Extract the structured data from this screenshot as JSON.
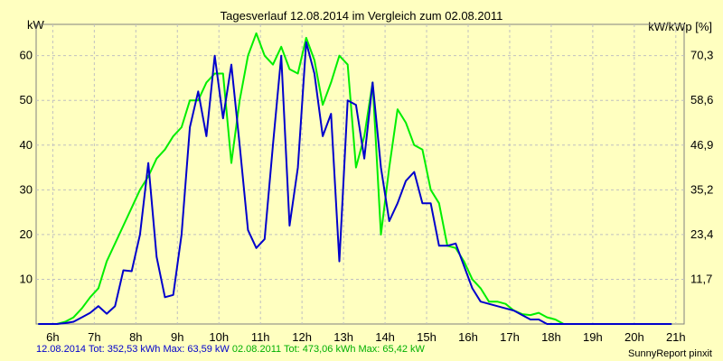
{
  "chart_data": {
    "type": "line",
    "title": "Tagesverlauf 12.08.2014 im Vergleich zum 02.08.2011",
    "ylabel_left": "kW",
    "ylabel_right": "kW/kWp [%]",
    "x_ticks": [
      "6h",
      "7h",
      "8h",
      "9h",
      "10h",
      "11h",
      "12h",
      "13h",
      "14h",
      "15h",
      "16h",
      "17h",
      "18h",
      "19h",
      "20h",
      "21h"
    ],
    "xlim": [
      5.6,
      21.2
    ],
    "ylim": [
      0,
      67
    ],
    "y_ticks_left": [
      10,
      20,
      30,
      40,
      50,
      60
    ],
    "y_ticks_right": [
      "11,7",
      "23,4",
      "35,2",
      "46,9",
      "58,6",
      "70,3"
    ],
    "grid": true,
    "series": [
      {
        "name": "12.08.2014",
        "color": "#0000cc",
        "x": [
          5.65,
          5.9,
          6.1,
          6.3,
          6.5,
          6.7,
          6.9,
          7.1,
          7.3,
          7.5,
          7.7,
          7.9,
          8.1,
          8.3,
          8.5,
          8.7,
          8.9,
          9.1,
          9.3,
          9.5,
          9.7,
          9.9,
          10.1,
          10.3,
          10.5,
          10.7,
          10.9,
          11.1,
          11.3,
          11.5,
          11.7,
          11.9,
          12.1,
          12.3,
          12.5,
          12.7,
          12.9,
          13.1,
          13.3,
          13.5,
          13.7,
          13.9,
          14.1,
          14.3,
          14.5,
          14.7,
          14.9,
          15.1,
          15.3,
          15.5,
          15.7,
          15.9,
          16.1,
          16.3,
          16.5,
          16.7,
          16.9,
          17.1,
          17.3,
          17.5,
          17.7,
          17.9,
          18.1,
          18.3,
          18.5,
          18.7,
          18.9,
          19.1,
          19.3,
          19.5,
          19.7,
          19.9,
          20.1,
          20.3,
          20.5,
          20.7,
          20.9
        ],
        "values": [
          0,
          0,
          0,
          0.2,
          0.5,
          1.5,
          2.5,
          4,
          2.3,
          4,
          12,
          11.8,
          20,
          36,
          15,
          6,
          6.5,
          20,
          44,
          52,
          42,
          60,
          46,
          58,
          40,
          21,
          17,
          19,
          40,
          60,
          22,
          35,
          63,
          56,
          42,
          47,
          14,
          50,
          49,
          37,
          54,
          35,
          23,
          27,
          32,
          34,
          27,
          27,
          17.5,
          17.5,
          18,
          13,
          8,
          5,
          4.5,
          4,
          3.5,
          3,
          2,
          1,
          1,
          0,
          0,
          0,
          0,
          0,
          0,
          0,
          0,
          0,
          0,
          0,
          0,
          0,
          0,
          0,
          0
        ]
      },
      {
        "name": "02.08.2011",
        "color": "#00ee00",
        "x": [
          5.65,
          5.9,
          6.1,
          6.3,
          6.5,
          6.7,
          6.9,
          7.1,
          7.3,
          7.5,
          7.7,
          7.9,
          8.1,
          8.3,
          8.5,
          8.7,
          8.9,
          9.1,
          9.3,
          9.5,
          9.7,
          9.9,
          10.1,
          10.3,
          10.5,
          10.7,
          10.9,
          11.1,
          11.3,
          11.5,
          11.7,
          11.9,
          12.1,
          12.3,
          12.5,
          12.7,
          12.9,
          13.1,
          13.3,
          13.5,
          13.7,
          13.9,
          14.1,
          14.3,
          14.5,
          14.7,
          14.9,
          15.1,
          15.3,
          15.5,
          15.7,
          15.9,
          16.1,
          16.3,
          16.5,
          16.7,
          16.9,
          17.1,
          17.3,
          17.5,
          17.7,
          17.9,
          18.1,
          18.3,
          18.5,
          18.7,
          18.9,
          19.1,
          19.3,
          19.5,
          19.7,
          19.9,
          20.1,
          20.3,
          20.5,
          20.7,
          20.9
        ],
        "values": [
          0,
          0,
          0,
          0.5,
          1.5,
          3.5,
          6,
          8,
          14,
          18,
          22,
          26,
          30,
          33,
          37,
          39,
          42,
          44,
          50,
          50,
          54,
          56,
          56,
          36,
          50,
          60,
          65,
          60,
          58,
          62,
          57,
          56,
          64,
          59,
          49,
          54,
          60,
          58,
          35,
          42,
          54,
          20,
          35,
          48,
          45,
          40,
          39,
          30,
          27,
          17.5,
          17,
          14,
          10,
          8,
          5,
          5,
          4.5,
          3,
          2.2,
          2,
          2.5,
          1.5,
          1,
          0,
          0,
          0,
          0,
          0,
          0,
          0,
          0,
          0,
          0,
          0,
          0,
          0,
          0
        ]
      }
    ]
  },
  "footer": {
    "series1_text": "12.08.2014 Tot: 352,53 kWh Max: 63,59 kW",
    "series2_text": "02.08.2011 Tot: 473,06 kWh Max: 65,42 kW",
    "credit": "SunnyReport pinxit"
  }
}
